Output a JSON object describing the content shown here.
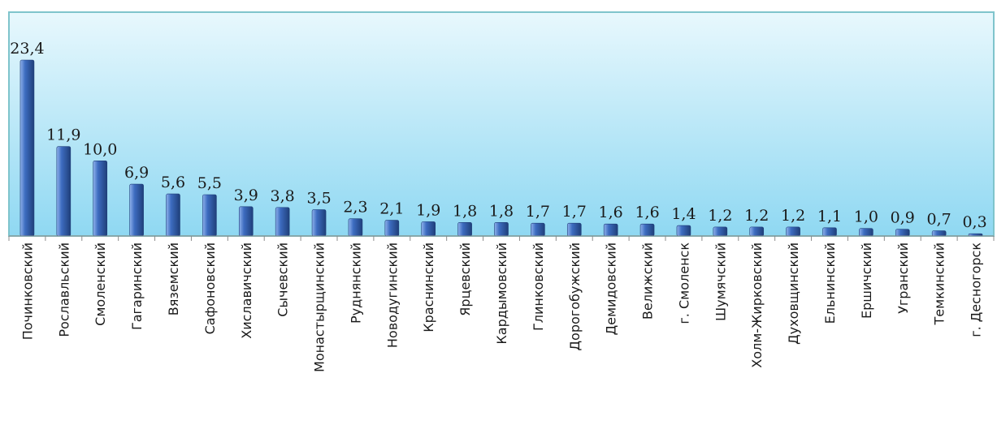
{
  "chart_data": {
    "type": "bar",
    "title": "",
    "xlabel": "",
    "ylabel": "",
    "ylim": [
      0,
      25
    ],
    "grid": false,
    "legend": "none",
    "categories": [
      "Починковский",
      "Рославльский",
      "Смоленский",
      "Гагаринский",
      "Вяземский",
      "Сафоновский",
      "Хиславичский",
      "Сычевский",
      "Монастырщинский",
      "Руднянский",
      "Новодугинский",
      "Краснинский",
      "Ярцевский",
      "Кардымовский",
      "Глинковский",
      "Дорогобужский",
      "Демидовский",
      "Велижский",
      "г. Смоленск",
      "Шумячский",
      "Холм-Жирковский",
      "Духовщинский",
      "Ельнинский",
      "Ершичский",
      "Угранский",
      "Темкинский",
      "г. Десногорск"
    ],
    "values": [
      23.4,
      11.9,
      10.0,
      6.9,
      5.6,
      5.5,
      3.9,
      3.8,
      3.5,
      2.3,
      2.1,
      1.9,
      1.8,
      1.8,
      1.7,
      1.7,
      1.6,
      1.6,
      1.4,
      1.2,
      1.2,
      1.2,
      1.1,
      1.0,
      0.9,
      0.7,
      0.3
    ],
    "value_labels": [
      "23,4",
      "11,9",
      "10,0",
      "6,9",
      "5,6",
      "5,5",
      "3,9",
      "3,8",
      "3,5",
      "2,3",
      "2,1",
      "1,9",
      "1,8",
      "1,8",
      "1,7",
      "1,7",
      "1,6",
      "1,6",
      "1,4",
      "1,2",
      "1,2",
      "1,2",
      "1,1",
      "1,0",
      "0,9",
      "0,7",
      "0,3"
    ],
    "colors": {
      "bar_dark": "#1f3f7a",
      "bar_mid": "#3d6cc0",
      "bar_light": "#8fb2ec",
      "plot_bg_top": "#e8f8fd",
      "plot_bg_bottom": "#8fd8f2",
      "plot_border": "#7fc4cc",
      "axis": "#8c8c8c"
    }
  }
}
